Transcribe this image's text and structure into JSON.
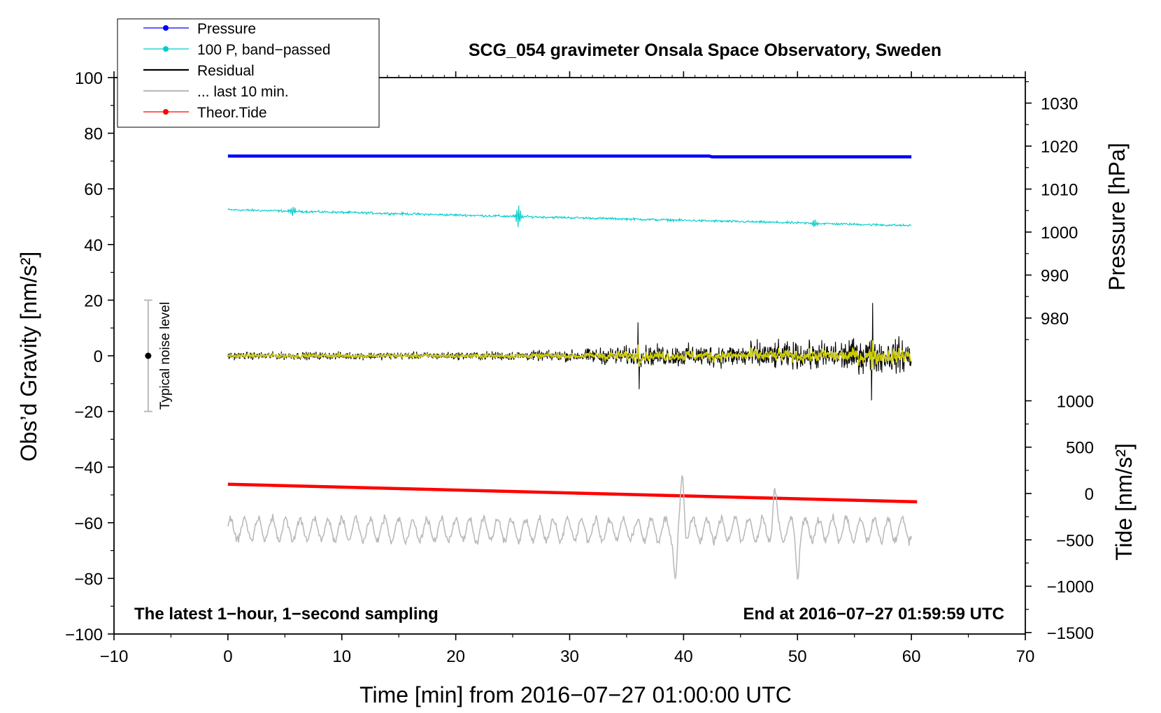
{
  "chart_data": {
    "type": "line",
    "title": "SCG_054 gravimeter Onsala Space Observatory, Sweden",
    "xlabel": "Time [min] from 2016−07−27 01:00:00 UTC",
    "ylabel_left": "Obs’d Gravity [nm/s²]",
    "ylabel_right_pressure": "Pressure [hPa]",
    "ylabel_right_tide": "Tide [nm/s²]",
    "xlim": [
      -10,
      70
    ],
    "ylim_left": [
      -100,
      100
    ],
    "x_ticks": [
      -10,
      0,
      10,
      20,
      30,
      40,
      50,
      60,
      70
    ],
    "x_tick_labels": [
      "−10",
      "0",
      "10",
      "20",
      "30",
      "40",
      "50",
      "60",
      "70"
    ],
    "y_ticks_left": [
      -100,
      -80,
      -60,
      -40,
      -20,
      0,
      20,
      40,
      60,
      80,
      100
    ],
    "y_tick_labels_left": [
      "−100",
      "−80",
      "−60",
      "−40",
      "−20",
      "0",
      "20",
      "40",
      "60",
      "80",
      "100"
    ],
    "pressure_axis": {
      "ticks": [
        980,
        990,
        1000,
        1010,
        1020,
        1030
      ],
      "labels": [
        "980",
        "990",
        "1000",
        "1010",
        "1020",
        "1030"
      ]
    },
    "tide_axis": {
      "ticks": [
        -1500,
        -1000,
        -500,
        0,
        500,
        1000
      ],
      "labels": [
        "−1500",
        "−1000",
        "−500",
        "0",
        "500",
        "1000"
      ]
    },
    "annotation_left": "The latest 1−hour, 1−second sampling",
    "annotation_right": "End at 2016−07−27 01:59:59 UTC",
    "noise_bar": {
      "x": -7,
      "center": 0,
      "range": [
        -20,
        20
      ],
      "label": "Typical noise level"
    },
    "legend": [
      {
        "label": "Pressure",
        "color": "#0000ff",
        "marker": true
      },
      {
        "label": "100 P, band−passed",
        "color": "#00cccc",
        "marker": true
      },
      {
        "label": "Residual",
        "color": "#000000",
        "marker": false
      },
      {
        "label": "... last 10 min.",
        "color": "#bbbbbb",
        "marker": false
      },
      {
        "label": "Theor.Tide",
        "color": "#ff0000",
        "marker": true
      }
    ],
    "series": [
      {
        "name": "Pressure",
        "color": "#0000ff",
        "x_range": [
          0,
          60
        ],
        "plot_level_start": 71.8,
        "plot_level_end": 71.5,
        "level_drop_at": 42.5,
        "pressure_hPa": [
          1016.4,
          1016.0
        ]
      },
      {
        "name": "100 P, band−passed",
        "color": "#00cccc",
        "x_range": [
          0,
          60
        ],
        "level_start": 52.5,
        "level_end": 46.8,
        "noise_amplitude": 0.6,
        "bursts": [
          {
            "x": 5.7,
            "amplitude": 2.0
          },
          {
            "x": 25.5,
            "amplitude": 4.5
          },
          {
            "x": 51.5,
            "amplitude": 1.5
          }
        ]
      },
      {
        "name": "Residual",
        "color": "#000000",
        "x_range": [
          0,
          60
        ],
        "level": 0,
        "envelope": [
          [
            0,
            2.0
          ],
          [
            20,
            2.0
          ],
          [
            30,
            3.0
          ],
          [
            34,
            5.0
          ],
          [
            40,
            6.0
          ],
          [
            44,
            6.0
          ],
          [
            46,
            8.0
          ],
          [
            50,
            7.0
          ],
          [
            55,
            9.0
          ],
          [
            60,
            9.0
          ]
        ],
        "peaks": [
          {
            "x": 56.6,
            "value": 19
          },
          {
            "x": 56.5,
            "value": -16
          },
          {
            "x": 36.0,
            "value": 12
          },
          {
            "x": 36.1,
            "value": -12
          }
        ]
      },
      {
        "name": "Residual (smoothed)",
        "color": "#cccc00",
        "x_range": [
          0,
          60
        ],
        "level": 0,
        "amplitude_ratio": 0.45
      },
      {
        "name": "Theor.Tide",
        "color": "#ff0000",
        "x_range": [
          0,
          60.5
        ],
        "tide_values": [
          100,
          -90
        ]
      },
      {
        "name": "... last 10 min.",
        "color": "#bbbbbb",
        "x_range": [
          0,
          60
        ],
        "level": -62.5,
        "amplitude": 4.5,
        "bursts": [
          {
            "x": 39.9,
            "value": -43
          },
          {
            "x": 39.3,
            "value": -79
          },
          {
            "x": 48.0,
            "value": -50
          },
          {
            "x": 50.0,
            "value": -76
          }
        ]
      }
    ]
  }
}
